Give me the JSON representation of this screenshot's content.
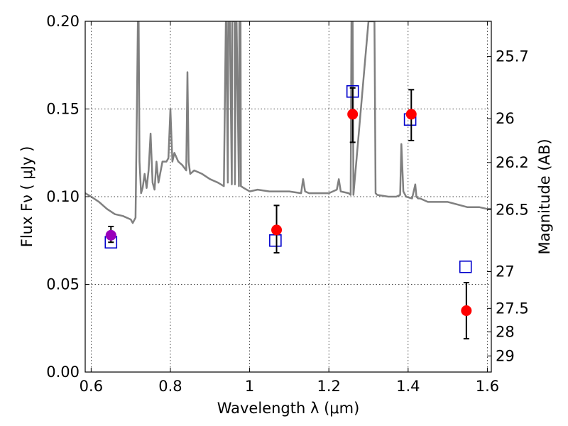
{
  "chart_data": {
    "type": "scatter",
    "xlabel": "Wavelength  λ (μm)",
    "ylabel": "Flux  Fν  ( μJy )",
    "y2label": "Magnitude (AB)",
    "xlim": [
      0.585,
      1.61
    ],
    "ylim": [
      0.0,
      0.2
    ],
    "x_ticks": [
      {
        "value": 0.6,
        "label": "0.6"
      },
      {
        "value": 0.8,
        "label": "0.8"
      },
      {
        "value": 1.0,
        "label": "1"
      },
      {
        "value": 1.2,
        "label": "1.2"
      },
      {
        "value": 1.4,
        "label": "1.4"
      },
      {
        "value": 1.6,
        "label": "1.6"
      }
    ],
    "y_ticks": [
      {
        "value": 0.0,
        "label": "0.00"
      },
      {
        "value": 0.05,
        "label": "0.05"
      },
      {
        "value": 0.1,
        "label": "0.10"
      },
      {
        "value": 0.15,
        "label": "0.15"
      },
      {
        "value": 0.2,
        "label": "0.20"
      }
    ],
    "y2_ticks": [
      {
        "flux": 0.18,
        "label": "25.7"
      },
      {
        "flux": 0.1445,
        "label": "26"
      },
      {
        "flux": 0.1195,
        "label": "26.2"
      },
      {
        "flux": 0.0926,
        "label": "26.5"
      },
      {
        "flux": 0.0573,
        "label": "27"
      },
      {
        "flux": 0.0363,
        "label": "27.5"
      },
      {
        "flux": 0.0229,
        "label": "28"
      },
      {
        "flux": 0.0092,
        "label": "29"
      }
    ],
    "grid": true,
    "series": [
      {
        "kind": "model-spectrum",
        "color": "#808080",
        "x": [
          0.585,
          0.6,
          0.62,
          0.64,
          0.66,
          0.68,
          0.7,
          0.705,
          0.712,
          0.716,
          0.718,
          0.72,
          0.722,
          0.726,
          0.73,
          0.735,
          0.74,
          0.745,
          0.75,
          0.755,
          0.76,
          0.765,
          0.77,
          0.78,
          0.79,
          0.795,
          0.8,
          0.805,
          0.81,
          0.82,
          0.83,
          0.84,
          0.843,
          0.846,
          0.85,
          0.86,
          0.88,
          0.9,
          0.92,
          0.935,
          0.94,
          0.941,
          0.945,
          0.946,
          0.95,
          0.955,
          0.956,
          0.962,
          0.963,
          0.966,
          0.967,
          0.973,
          0.974,
          0.977,
          0.978,
          0.985,
          1.0,
          1.02,
          1.05,
          1.1,
          1.13,
          1.135,
          1.14,
          1.15,
          1.2,
          1.22,
          1.225,
          1.23,
          1.25,
          1.255,
          1.257,
          1.26,
          1.262,
          1.3,
          1.315,
          1.318,
          1.322,
          1.35,
          1.37,
          1.38,
          1.383,
          1.388,
          1.395,
          1.41,
          1.418,
          1.421,
          1.425,
          1.43,
          1.45,
          1.5,
          1.55,
          1.58,
          1.6,
          1.61
        ],
        "y": [
          0.102,
          0.1,
          0.097,
          0.093,
          0.09,
          0.089,
          0.087,
          0.085,
          0.088,
          0.16,
          0.2,
          0.2,
          0.12,
          0.102,
          0.105,
          0.113,
          0.105,
          0.115,
          0.136,
          0.108,
          0.104,
          0.12,
          0.108,
          0.12,
          0.12,
          0.122,
          0.15,
          0.12,
          0.125,
          0.12,
          0.118,
          0.115,
          0.171,
          0.12,
          0.113,
          0.115,
          0.113,
          0.11,
          0.108,
          0.106,
          0.2,
          0.2,
          0.108,
          0.2,
          0.2,
          0.107,
          0.2,
          0.2,
          0.107,
          0.2,
          0.2,
          0.106,
          0.2,
          0.2,
          0.106,
          0.105,
          0.103,
          0.104,
          0.103,
          0.103,
          0.102,
          0.11,
          0.103,
          0.102,
          0.102,
          0.104,
          0.11,
          0.103,
          0.102,
          0.101,
          0.2,
          0.2,
          0.101,
          0.2,
          0.2,
          0.102,
          0.101,
          0.1,
          0.1,
          0.101,
          0.13,
          0.103,
          0.1,
          0.099,
          0.107,
          0.1,
          0.099,
          0.099,
          0.097,
          0.097,
          0.094,
          0.094,
          0.093,
          0.093
        ]
      },
      {
        "kind": "model-points",
        "marker": "open-square",
        "color": "#0000cc",
        "x": [
          0.65,
          1.065,
          1.26,
          1.405,
          1.545
        ],
        "y": [
          0.074,
          0.075,
          0.16,
          0.144,
          0.06
        ]
      },
      {
        "kind": "observed",
        "marker": "filled-circle",
        "color": "#ff0000",
        "x": [
          1.068,
          1.26,
          1.408,
          1.547
        ],
        "y": [
          0.081,
          0.147,
          0.147,
          0.035
        ],
        "yerr_low": [
          0.068,
          0.131,
          0.132,
          0.019
        ],
        "yerr_high": [
          0.095,
          0.162,
          0.161,
          0.051
        ]
      },
      {
        "kind": "observed",
        "marker": "filled-circle",
        "color": "#9900bb",
        "x": [
          0.65
        ],
        "y": [
          0.078
        ],
        "yerr_low": [
          0.074
        ],
        "yerr_high": [
          0.083
        ]
      }
    ]
  }
}
